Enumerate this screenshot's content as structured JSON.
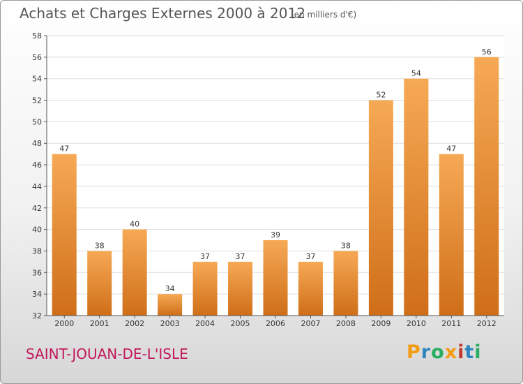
{
  "header": {
    "title": "Achats et Charges Externes 2000 à 2012",
    "subtitle": "(en milliers d'€)"
  },
  "footer": {
    "place": "SAINT-JOUAN-DE-L'ISLE",
    "logo": "Proxiti",
    "logo_colors": [
      "#f39c12",
      "#2e86c1",
      "#27ae60",
      "#f39c12",
      "#c0392b",
      "#2e86c1",
      "#27ae60"
    ]
  },
  "colors": {
    "bar_light": "#f6a955",
    "bar_dark": "#cf6e18",
    "grid": "#dddddd",
    "axis": "#555555"
  },
  "chart_data": {
    "type": "bar",
    "title": "Achats et Charges Externes 2000 à 2012",
    "subtitle": "(en milliers d'€)",
    "categories": [
      "2000",
      "2001",
      "2002",
      "2003",
      "2004",
      "2005",
      "2006",
      "2007",
      "2008",
      "2009",
      "2010",
      "2011",
      "2012"
    ],
    "values": [
      47,
      38,
      40,
      34,
      37,
      37,
      39,
      37,
      38,
      52,
      54,
      47,
      56
    ],
    "ylim": [
      32,
      58
    ],
    "yticks": [
      32,
      34,
      36,
      38,
      40,
      42,
      44,
      46,
      48,
      50,
      52,
      54,
      56,
      58
    ],
    "grid": true,
    "xlabel": "",
    "ylabel": ""
  }
}
